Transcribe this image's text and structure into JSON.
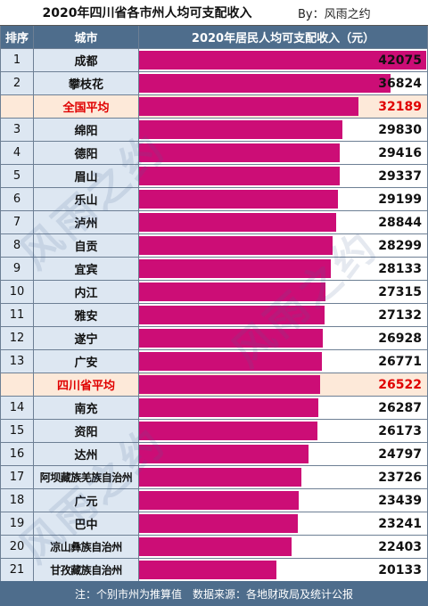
{
  "header": {
    "title": "2020年四川省各市州人均可支配收入",
    "author": "By：风雨之约"
  },
  "columns": [
    "排序",
    "城市",
    "2020年居民人均可支配收入（元）"
  ],
  "footer": "注：个别市州为推算值　数据来源：各地财政局及统计公报",
  "watermark_text": "风雨之约",
  "colors": {
    "header_bg": "#4e6d8c",
    "bar": "#cc0d76",
    "avg_bg": "#fde9d9",
    "avg_text": "#e00000",
    "rank_bg": "#dde7f2"
  },
  "chart_data": {
    "type": "bar",
    "orientation": "horizontal",
    "title": "2020年四川省各市州人均可支配收入",
    "xlim": [
      0,
      42075
    ],
    "rows": [
      {
        "rank": "1",
        "city": "成都",
        "value": 42075,
        "avg": false
      },
      {
        "rank": "2",
        "city": "攀枝花",
        "value": 36824,
        "avg": false
      },
      {
        "rank": "",
        "city": "全国平均",
        "value": 32189,
        "avg": true
      },
      {
        "rank": "3",
        "city": "绵阳",
        "value": 29830,
        "avg": false
      },
      {
        "rank": "4",
        "city": "德阳",
        "value": 29416,
        "avg": false
      },
      {
        "rank": "5",
        "city": "眉山",
        "value": 29337,
        "avg": false
      },
      {
        "rank": "6",
        "city": "乐山",
        "value": 29199,
        "avg": false
      },
      {
        "rank": "7",
        "city": "泸州",
        "value": 28844,
        "avg": false
      },
      {
        "rank": "8",
        "city": "自贡",
        "value": 28299,
        "avg": false
      },
      {
        "rank": "9",
        "city": "宜宾",
        "value": 28133,
        "avg": false
      },
      {
        "rank": "10",
        "city": "内江",
        "value": 27315,
        "avg": false
      },
      {
        "rank": "11",
        "city": "雅安",
        "value": 27132,
        "avg": false
      },
      {
        "rank": "12",
        "city": "遂宁",
        "value": 26928,
        "avg": false
      },
      {
        "rank": "13",
        "city": "广安",
        "value": 26771,
        "avg": false
      },
      {
        "rank": "",
        "city": "四川省平均",
        "value": 26522,
        "avg": true
      },
      {
        "rank": "14",
        "city": "南充",
        "value": 26287,
        "avg": false
      },
      {
        "rank": "15",
        "city": "资阳",
        "value": 26173,
        "avg": false
      },
      {
        "rank": "16",
        "city": "达州",
        "value": 24797,
        "avg": false
      },
      {
        "rank": "17",
        "city": "阿坝藏族羌族自治州",
        "value": 23726,
        "avg": false
      },
      {
        "rank": "18",
        "city": "广元",
        "value": 23439,
        "avg": false
      },
      {
        "rank": "19",
        "city": "巴中",
        "value": 23241,
        "avg": false
      },
      {
        "rank": "20",
        "city": "凉山彝族自治州",
        "value": 22403,
        "avg": false
      },
      {
        "rank": "21",
        "city": "甘孜藏族自治州",
        "value": 20133,
        "avg": false
      }
    ]
  }
}
